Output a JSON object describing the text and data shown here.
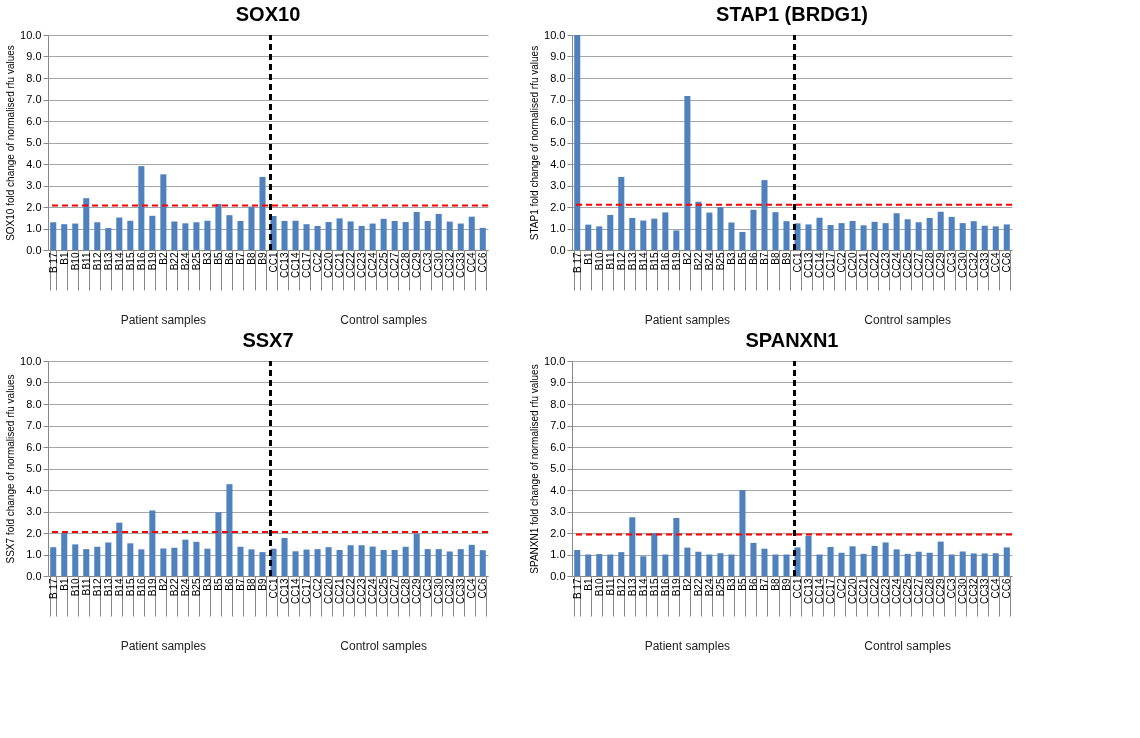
{
  "chart_data": [
    {
      "type": "bar",
      "title": "SOX10",
      "ylabel": "SOX10 fold change of normalised rfu values",
      "grid": "y",
      "categories": [
        "B 17",
        "B1",
        "B10",
        "B11",
        "B12",
        "B13",
        "B14",
        "B15",
        "B16",
        "B19",
        "B2",
        "B22",
        "B24",
        "B25",
        "B3",
        "B5",
        "B6",
        "B7",
        "B8",
        "B9",
        "CC1",
        "CC13",
        "CC14",
        "CC17",
        "CC2",
        "CC20",
        "CC21",
        "CC22",
        "CC23",
        "CC24",
        "CC25",
        "CC27",
        "CC28",
        "CC29",
        "CC3",
        "CC30",
        "CC32",
        "CC33",
        "CC4",
        "CC6"
      ],
      "series": [
        {
          "color": "#4f81bd",
          "values": [
            1.29,
            1.2,
            1.23,
            2.41,
            1.29,
            1.02,
            1.51,
            1.36,
            3.9,
            1.59,
            3.52,
            1.33,
            1.24,
            1.29,
            1.36,
            2.14,
            1.62,
            1.35,
            2.02,
            3.4,
            1.58,
            1.35,
            1.36,
            1.2,
            1.12,
            1.3,
            1.47,
            1.33,
            1.12,
            1.23,
            1.45,
            1.35,
            1.3,
            1.77,
            1.35,
            1.68,
            1.32,
            1.23,
            1.55,
            1.03
          ]
        }
      ],
      "ylim": [
        0,
        10
      ],
      "yticks": [
        {
          "value": 0,
          "label": "0.0"
        },
        {
          "value": 1,
          "label": "1.0"
        },
        {
          "value": 2,
          "label": "2.0"
        },
        {
          "value": 3,
          "label": "3.0"
        },
        {
          "value": 4,
          "label": "4.0"
        },
        {
          "value": 5,
          "label": "5.0"
        },
        {
          "value": 6,
          "label": "6.0"
        },
        {
          "value": 7,
          "label": "7.0"
        },
        {
          "value": 8,
          "label": "8.0"
        },
        {
          "value": 9,
          "label": "9.0"
        },
        {
          "value": 10,
          "label": "10.0"
        }
      ],
      "ref_lines": [
        {
          "axis": "y",
          "value": 2.07,
          "color": "#ff0000",
          "line_style": "dashed"
        },
        {
          "axis": "x",
          "value": "CC1",
          "color": "#000000",
          "line_style": "dashed"
        }
      ],
      "annotations": [
        "Patient samples",
        "Control samples"
      ]
    },
    {
      "type": "bar",
      "title": "STAP1 (BRDG1)",
      "ylabel": "STAP1 fold change of normalised rfu values",
      "grid": "y",
      "categories": [
        "B 17",
        "B1",
        "B10",
        "B11",
        "B12",
        "B13",
        "B14",
        "B15",
        "B16",
        "B19",
        "B2",
        "B22",
        "B24",
        "B25",
        "B3",
        "B5",
        "B6",
        "B7",
        "B8",
        "B9",
        "CC1",
        "CC13",
        "CC14",
        "CC17",
        "CC2",
        "CC20",
        "CC21",
        "CC22",
        "CC23",
        "CC24",
        "CC25",
        "CC27",
        "CC28",
        "CC29",
        "CC3",
        "CC30",
        "CC32",
        "CC33",
        "CC4",
        "CC6"
      ],
      "series": [
        {
          "color": "#4f81bd",
          "values": [
            10,
            1.18,
            1.1,
            1.63,
            3.4,
            1.49,
            1.37,
            1.46,
            1.75,
            0.91,
            7.16,
            2.24,
            1.74,
            2.0,
            1.28,
            0.84,
            1.87,
            3.25,
            1.76,
            1.34,
            1.24,
            1.19,
            1.5,
            1.16,
            1.25,
            1.35,
            1.15,
            1.31,
            1.25,
            1.71,
            1.43,
            1.29,
            1.49,
            1.78,
            1.54,
            1.25,
            1.34,
            1.13,
            1.1,
            1.19
          ]
        }
      ],
      "ylim": [
        0,
        10
      ],
      "yticks": [
        {
          "value": 0,
          "label": "0.0"
        },
        {
          "value": 1,
          "label": "1.0"
        },
        {
          "value": 2,
          "label": "2.0"
        },
        {
          "value": 3,
          "label": "3.0"
        },
        {
          "value": 4,
          "label": "4.0"
        },
        {
          "value": 5,
          "label": "5.0"
        },
        {
          "value": 6,
          "label": "6.0"
        },
        {
          "value": 7,
          "label": "7.0"
        },
        {
          "value": 8,
          "label": "8.0"
        },
        {
          "value": 9,
          "label": "9.0"
        },
        {
          "value": 10,
          "label": "10.0"
        }
      ],
      "ref_lines": [
        {
          "axis": "y",
          "value": 2.1,
          "color": "#ff0000",
          "line_style": "dashed"
        },
        {
          "axis": "x",
          "value": "CC1",
          "color": "#000000",
          "line_style": "dashed"
        }
      ],
      "annotations": [
        "Patient samples",
        "Control samples"
      ]
    },
    {
      "type": "bar",
      "title": "SSX7",
      "ylabel": "SSX7 fold change of normalised rfu values",
      "grid": "y",
      "categories": [
        "B 17",
        "B1",
        "B10",
        "B11",
        "B12",
        "B13",
        "B14",
        "B15",
        "B16",
        "B19",
        "B2",
        "B22",
        "B24",
        "B25",
        "B3",
        "B5",
        "B6",
        "B7",
        "B8",
        "B9",
        "CC1",
        "CC13",
        "CC14",
        "CC17",
        "CC2",
        "CC20",
        "CC21",
        "CC22",
        "CC23",
        "CC24",
        "CC25",
        "CC27",
        "CC28",
        "CC29",
        "CC3",
        "CC30",
        "CC32",
        "CC33",
        "CC4",
        "CC6"
      ],
      "series": [
        {
          "color": "#4f81bd",
          "values": [
            1.34,
            2.0,
            1.47,
            1.25,
            1.36,
            1.56,
            2.48,
            1.52,
            1.24,
            3.05,
            1.28,
            1.31,
            1.69,
            1.59,
            1.27,
            2.96,
            4.27,
            1.36,
            1.24,
            1.11,
            1.27,
            1.77,
            1.15,
            1.23,
            1.25,
            1.34,
            1.21,
            1.43,
            1.43,
            1.37,
            1.21,
            1.21,
            1.36,
            1.97,
            1.25,
            1.25,
            1.14,
            1.25,
            1.45,
            1.2
          ]
        }
      ],
      "ylim": [
        0,
        10
      ],
      "yticks": [
        {
          "value": 0,
          "label": "0.0"
        },
        {
          "value": 1,
          "label": "1.0"
        },
        {
          "value": 2,
          "label": "2.0"
        },
        {
          "value": 3,
          "label": "3.0"
        },
        {
          "value": 4,
          "label": "4.0"
        },
        {
          "value": 5,
          "label": "5.0"
        },
        {
          "value": 6,
          "label": "6.0"
        },
        {
          "value": 7,
          "label": "7.0"
        },
        {
          "value": 8,
          "label": "8.0"
        },
        {
          "value": 9,
          "label": "9.0"
        },
        {
          "value": 10,
          "label": "10.0"
        }
      ],
      "ref_lines": [
        {
          "axis": "y",
          "value": 2.05,
          "color": "#ff0000",
          "line_style": "dashed"
        },
        {
          "axis": "x",
          "value": "CC1",
          "color": "#000000",
          "line_style": "dashed"
        }
      ],
      "annotations": [
        "Patient samples",
        "Control samples"
      ]
    },
    {
      "type": "bar",
      "title": "SPANXN1",
      "ylabel": "SPANXN1 fold change of normalised rfu values",
      "grid": "y",
      "categories": [
        "B 17",
        "B1",
        "B10",
        "B11",
        "B12",
        "B13",
        "B14",
        "B15",
        "B16",
        "B19",
        "B2",
        "B22",
        "B24",
        "B25",
        "B3",
        "B5",
        "B6",
        "B7",
        "B8",
        "B9",
        "CC1",
        "CC13",
        "CC14",
        "CC17",
        "CC2",
        "CC20",
        "CC21",
        "CC22",
        "CC23",
        "CC24",
        "CC25",
        "CC27",
        "CC28",
        "CC29",
        "CC3",
        "CC30",
        "CC32",
        "CC33",
        "CC4",
        "CC6"
      ],
      "series": [
        {
          "color": "#4f81bd",
          "values": [
            1.21,
            1.0,
            1.02,
            1.0,
            1.11,
            2.73,
            0.92,
            2.0,
            1.0,
            2.7,
            1.32,
            1.13,
            1.0,
            1.06,
            1.0,
            4.0,
            1.54,
            1.27,
            1.0,
            1.0,
            1.33,
            1.87,
            1.0,
            1.35,
            1.08,
            1.38,
            1.03,
            1.4,
            1.56,
            1.24,
            1.03,
            1.13,
            1.08,
            1.6,
            1.0,
            1.14,
            1.05,
            1.05,
            1.06,
            1.33
          ]
        }
      ],
      "ylim": [
        0,
        10
      ],
      "yticks": [
        {
          "value": 0,
          "label": "0.0"
        },
        {
          "value": 1,
          "label": "1.0"
        },
        {
          "value": 2,
          "label": "2.0"
        },
        {
          "value": 3,
          "label": "3.0"
        },
        {
          "value": 4,
          "label": "4.0"
        },
        {
          "value": 5,
          "label": "5.0"
        },
        {
          "value": 6,
          "label": "6.0"
        },
        {
          "value": 7,
          "label": "7.0"
        },
        {
          "value": 8,
          "label": "8.0"
        },
        {
          "value": 9,
          "label": "9.0"
        },
        {
          "value": 10,
          "label": "10.0"
        }
      ],
      "ref_lines": [
        {
          "axis": "y",
          "value": 1.93,
          "color": "#ff0000",
          "line_style": "dashed"
        },
        {
          "axis": "x",
          "value": "CC1",
          "color": "#000000",
          "line_style": "dashed"
        }
      ],
      "annotations": [
        "Patient samples",
        "Control samples"
      ]
    }
  ]
}
